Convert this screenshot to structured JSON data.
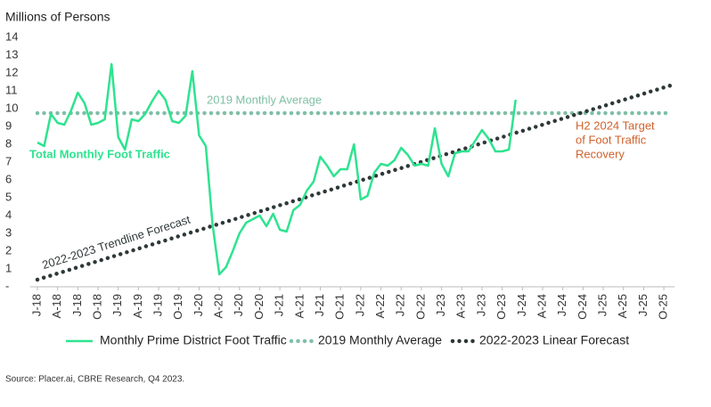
{
  "chart_data": {
    "type": "line",
    "y_label": "Millions of Persons",
    "source": "Source: Placer.ai, CBRE Research, Q4 2023.",
    "categories": [
      "J-18",
      null,
      null,
      "A-18",
      null,
      null,
      "J-18",
      null,
      null,
      "O-18",
      null,
      null,
      "J-19",
      null,
      null,
      "A-19",
      null,
      null,
      "J-19",
      null,
      null,
      "O-19",
      null,
      null,
      "J-20",
      null,
      null,
      "A-20",
      null,
      null,
      "J-20",
      null,
      null,
      "O-20",
      null,
      null,
      "J-21",
      null,
      null,
      "A-21",
      null,
      null,
      "J-21",
      null,
      null,
      "O-21",
      null,
      null,
      "J-22",
      null,
      null,
      "A-22",
      null,
      null,
      "J-22",
      null,
      null,
      "O-22",
      null,
      null,
      "J-23",
      null,
      null,
      "A-23",
      null,
      null,
      "J-23",
      null,
      null,
      "O-23",
      null,
      null,
      "J-24",
      null,
      null,
      "A-24",
      null,
      null,
      "J-24",
      null,
      null,
      "O-24",
      null,
      null,
      "J-25",
      null,
      null,
      "A-25",
      null,
      null,
      "J-25",
      null,
      null,
      "O-25",
      null
    ],
    "series": [
      {
        "name": "Monthly Prime District Foot Traffic",
        "color": "#2ee38f",
        "dash": "solid",
        "values": [
          8.1,
          7.9,
          9.7,
          9.2,
          9.1,
          9.9,
          10.9,
          10.3,
          9.1,
          9.2,
          9.4,
          12.5,
          8.4,
          7.7,
          9.4,
          9.3,
          9.7,
          10.4,
          11.0,
          10.5,
          9.3,
          9.2,
          9.6,
          12.1,
          8.5,
          7.9,
          3.5,
          0.7,
          1.1,
          2.0,
          3.0,
          3.6,
          3.8,
          4.0,
          3.4,
          4.1,
          3.2,
          3.1,
          4.3,
          4.6,
          5.4,
          5.9,
          7.3,
          6.8,
          6.2,
          6.6,
          6.6,
          8.0,
          4.9,
          5.1,
          6.4,
          6.9,
          6.8,
          7.1,
          7.8,
          7.4,
          6.8,
          6.9,
          6.8,
          8.9,
          6.9,
          6.2,
          7.5,
          7.6,
          7.6,
          8.2,
          8.8,
          8.3,
          7.6,
          7.6,
          7.7,
          10.5,
          null,
          null,
          null,
          null,
          null,
          null,
          null,
          null,
          null,
          null,
          null,
          null,
          null,
          null,
          null,
          null,
          null,
          null,
          null,
          null,
          null,
          null,
          null
        ]
      },
      {
        "name": "2019 Monthly Average",
        "color": "#7fbfa6",
        "dash": "dotted",
        "values": [
          9.75,
          9.75,
          9.75,
          9.75,
          9.75,
          9.75,
          9.75,
          9.75,
          9.75,
          9.75,
          9.75,
          9.75,
          9.75,
          9.75,
          9.75,
          9.75,
          9.75,
          9.75,
          9.75,
          9.75,
          9.75,
          9.75,
          9.75,
          9.75,
          9.75,
          9.75,
          9.75,
          9.75,
          9.75,
          9.75,
          9.75,
          9.75,
          9.75,
          9.75,
          9.75,
          9.75,
          9.75,
          9.75,
          9.75,
          9.75,
          9.75,
          9.75,
          9.75,
          9.75,
          9.75,
          9.75,
          9.75,
          9.75,
          9.75,
          9.75,
          9.75,
          9.75,
          9.75,
          9.75,
          9.75,
          9.75,
          9.75,
          9.75,
          9.75,
          9.75,
          9.75,
          9.75,
          9.75,
          9.75,
          9.75,
          9.75,
          9.75,
          9.75,
          9.75,
          9.75,
          9.75,
          9.75,
          9.75,
          9.75,
          9.75,
          9.75,
          9.75,
          9.75,
          9.75,
          9.75,
          9.75,
          9.75,
          9.75,
          9.75,
          9.75,
          9.75,
          9.75,
          9.75,
          9.75,
          9.75,
          9.75,
          9.75,
          9.75,
          9.75,
          9.75
        ]
      },
      {
        "name": "2022-2023 Linear Forecast",
        "color": "#2f3838",
        "dash": "dotted",
        "values": [
          0.4,
          0.52,
          0.63,
          0.75,
          0.86,
          0.98,
          1.1,
          1.21,
          1.33,
          1.44,
          1.56,
          1.68,
          1.79,
          1.91,
          2.02,
          2.14,
          2.26,
          2.37,
          2.49,
          2.6,
          2.72,
          2.84,
          2.95,
          3.07,
          3.18,
          3.3,
          3.42,
          3.53,
          3.65,
          3.76,
          3.88,
          4.0,
          4.11,
          4.23,
          4.34,
          4.46,
          4.58,
          4.69,
          4.81,
          4.92,
          5.04,
          5.16,
          5.27,
          5.39,
          5.5,
          5.62,
          5.74,
          5.85,
          5.97,
          6.08,
          6.2,
          6.32,
          6.43,
          6.55,
          6.66,
          6.78,
          6.9,
          7.01,
          7.13,
          7.24,
          7.36,
          7.48,
          7.59,
          7.71,
          7.82,
          7.94,
          8.06,
          8.17,
          8.29,
          8.4,
          8.52,
          8.64,
          8.75,
          8.87,
          8.98,
          9.1,
          9.22,
          9.33,
          9.45,
          9.56,
          9.68,
          9.8,
          9.91,
          10.03,
          10.14,
          10.26,
          10.38,
          10.49,
          10.61,
          10.72,
          10.84,
          10.96,
          11.07,
          11.19,
          11.3
        ]
      }
    ],
    "annotations": [
      {
        "text": [
          "2019 Monthly Average"
        ],
        "color": "#7fbfa6"
      },
      {
        "text": [
          "Total Monthly Foot Traffic"
        ],
        "color": "#2ee38f"
      },
      {
        "text": [
          "2022-2023 Trendline Forecast"
        ],
        "color": "#2f3838"
      },
      {
        "text": [
          "H2 2024 Target",
          "of Foot Traffic",
          "Recovery"
        ],
        "color": "#d0622c"
      }
    ],
    "ylim": [
      0,
      14
    ],
    "yticks": [
      {
        "value": 0,
        "label": "-"
      },
      1,
      2,
      3,
      4,
      5,
      6,
      7,
      8,
      9,
      10,
      11,
      12,
      13,
      14
    ],
    "grid": false,
    "legend": "bottom"
  }
}
